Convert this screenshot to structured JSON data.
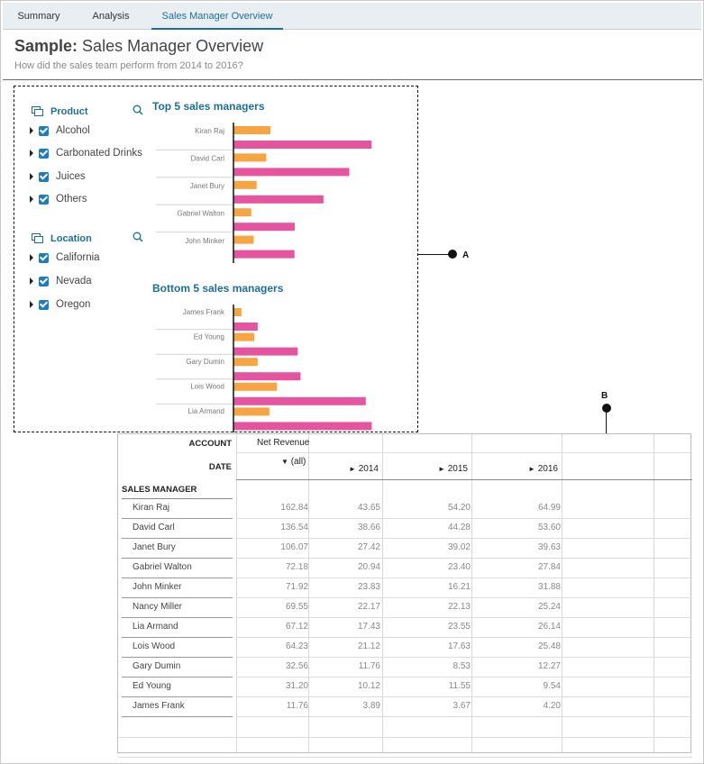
{
  "tabs": [
    {
      "label": "Summary"
    },
    {
      "label": "Analysis"
    },
    {
      "label": "Sales Manager Overview"
    }
  ],
  "header": {
    "title_prefix": "Sample:",
    "title": "Sales Manager Overview",
    "subtitle": "How did the sales team perform from 2014 to 2016?"
  },
  "filters": {
    "product": {
      "label": "Product",
      "items": [
        "Alcohol",
        "Carbonated Drinks",
        "Juices",
        "Others"
      ]
    },
    "location": {
      "label": "Location",
      "items": [
        "California",
        "Nevada",
        "Oregon"
      ]
    }
  },
  "colors": {
    "series_orange": "#f7a443",
    "series_pink": "#e5549f",
    "accent": "#1c6f98",
    "checkbox": "#1a7cc1"
  },
  "callouts": {
    "a": "A",
    "b": "B"
  },
  "chart_data": [
    {
      "type": "bar",
      "orientation": "horizontal",
      "title": "Top 5 sales managers",
      "categories": [
        "Kiran Raj",
        "David Carl",
        "Janet Bury",
        "Gabriel Walton",
        "John Minker"
      ],
      "series": [
        {
          "values": [
            43.65,
            38.66,
            27.42,
            20.94,
            23.83
          ]
        },
        {
          "values": [
            162.84,
            136.54,
            106.07,
            72.18,
            71.92
          ]
        }
      ],
      "xlim": [
        0,
        170
      ]
    },
    {
      "type": "bar",
      "orientation": "horizontal",
      "title": "Bottom 5 sales managers",
      "categories": [
        "James Frank",
        "Ed Young",
        "Gary Dumin",
        "Lois Wood",
        "Lia Armand"
      ],
      "series": [
        {
          "values": [
            3.89,
            10.12,
            11.76,
            21.12,
            17.43
          ]
        },
        {
          "values": [
            11.76,
            31.2,
            32.56,
            64.23,
            67.12
          ]
        }
      ],
      "xlim": [
        0,
        70
      ]
    }
  ],
  "table": {
    "account_label": "ACCOUNT",
    "account_value": "Net Revenue",
    "date_label": "DATE",
    "date_all": "(all)",
    "years": [
      "2014",
      "2015",
      "2016"
    ],
    "row_header": "SALES MANAGER",
    "rows": [
      {
        "name": "Kiran Raj",
        "all": "162.84",
        "y2014": "43.65",
        "y2015": "54.20",
        "y2016": "64.99"
      },
      {
        "name": "David Carl",
        "all": "136.54",
        "y2014": "38.66",
        "y2015": "44.28",
        "y2016": "53.60"
      },
      {
        "name": "Janet Bury",
        "all": "106.07",
        "y2014": "27.42",
        "y2015": "39.02",
        "y2016": "39.63"
      },
      {
        "name": "Gabriel Walton",
        "all": "72.18",
        "y2014": "20.94",
        "y2015": "23.40",
        "y2016": "27.84"
      },
      {
        "name": "John Minker",
        "all": "71.92",
        "y2014": "23.83",
        "y2015": "16.21",
        "y2016": "31.88"
      },
      {
        "name": "Nancy Miller",
        "all": "69.55",
        "y2014": "22.17",
        "y2015": "22.13",
        "y2016": "25.24"
      },
      {
        "name": "Lia Armand",
        "all": "67.12",
        "y2014": "17.43",
        "y2015": "23.55",
        "y2016": "26.14"
      },
      {
        "name": "Lois Wood",
        "all": "64.23",
        "y2014": "21.12",
        "y2015": "17.63",
        "y2016": "25.48"
      },
      {
        "name": "Gary Dumin",
        "all": "32.56",
        "y2014": "11.76",
        "y2015": "8.53",
        "y2016": "12.27"
      },
      {
        "name": "Ed Young",
        "all": "31.20",
        "y2014": "10.12",
        "y2015": "11.55",
        "y2016": "9.54"
      },
      {
        "name": "James Frank",
        "all": "11.76",
        "y2014": "3.89",
        "y2015": "3.67",
        "y2016": "4.20"
      }
    ]
  }
}
